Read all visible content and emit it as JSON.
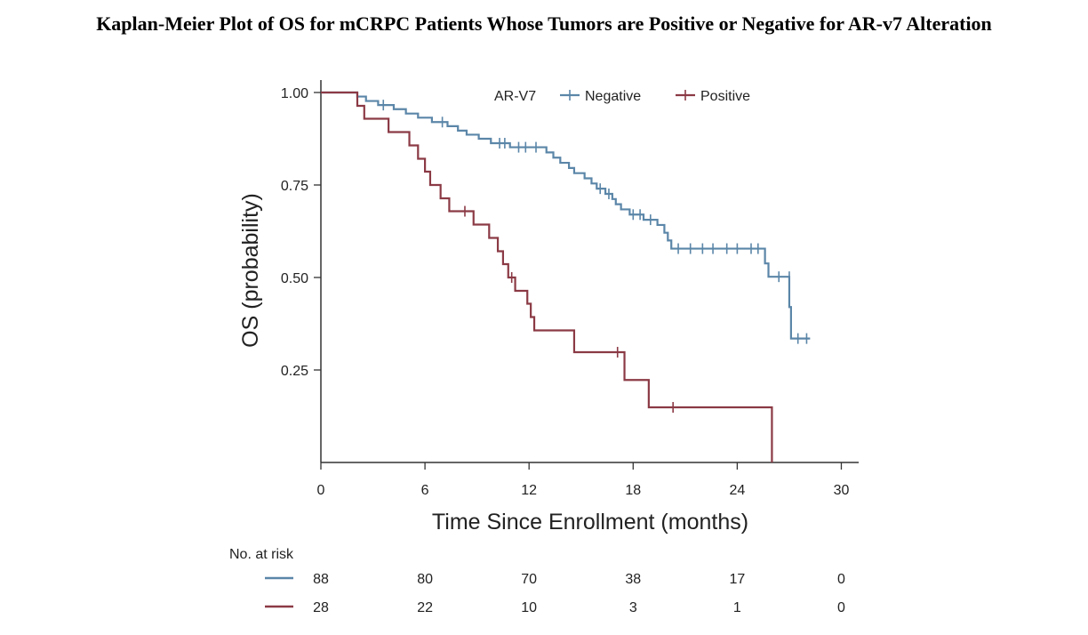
{
  "title": "Kaplan-Meier Plot of OS for mCRPC Patients Whose Tumors are Positive or Negative for AR-v7 Alteration",
  "chart_data": {
    "type": "line",
    "title": "Kaplan-Meier Plot of OS for mCRPC Patients Whose Tumors are Positive or Negative for AR-v7 Alteration",
    "xlabel": "Time Since Enrollment (months)",
    "ylabel": "OS (probability)",
    "xlim": [
      0,
      31
    ],
    "ylim": [
      0,
      1.0
    ],
    "x_ticks": [
      0,
      6,
      12,
      18,
      24,
      30
    ],
    "x_tick_labels": [
      "0",
      "6",
      "12",
      "18",
      "24",
      "30"
    ],
    "y_ticks": [
      0.25,
      0.5,
      0.75,
      1.0
    ],
    "y_tick_labels": [
      "0.25",
      "0.50",
      "0.75",
      "1.00"
    ],
    "legend": {
      "title": "AR-V7",
      "placement": "top-right"
    },
    "series": [
      {
        "name": "Negative",
        "color": "#5b86a8",
        "steps": [
          [
            0,
            1.0
          ],
          [
            2.1,
            0.989
          ],
          [
            2.6,
            0.977
          ],
          [
            3.3,
            0.966
          ],
          [
            4.2,
            0.955
          ],
          [
            4.9,
            0.943
          ],
          [
            5.6,
            0.932
          ],
          [
            6.4,
            0.92
          ],
          [
            7.3,
            0.909
          ],
          [
            7.9,
            0.897
          ],
          [
            8.4,
            0.886
          ],
          [
            9.1,
            0.875
          ],
          [
            9.8,
            0.863
          ],
          [
            10.9,
            0.852
          ],
          [
            13.0,
            0.838
          ],
          [
            13.4,
            0.824
          ],
          [
            13.8,
            0.81
          ],
          [
            14.3,
            0.796
          ],
          [
            14.6,
            0.782
          ],
          [
            15.2,
            0.768
          ],
          [
            15.6,
            0.754
          ],
          [
            15.9,
            0.74
          ],
          [
            16.4,
            0.726
          ],
          [
            16.8,
            0.712
          ],
          [
            17.0,
            0.698
          ],
          [
            17.3,
            0.684
          ],
          [
            17.8,
            0.67
          ],
          [
            18.6,
            0.656
          ],
          [
            19.4,
            0.642
          ],
          [
            19.8,
            0.621
          ],
          [
            20.0,
            0.6
          ],
          [
            20.2,
            0.578
          ],
          [
            25.6,
            0.538
          ],
          [
            25.8,
            0.502
          ],
          [
            27.0,
            0.42
          ],
          [
            27.1,
            0.335
          ],
          [
            28.2,
            0.335
          ]
        ],
        "censors": [
          [
            3.6,
            0.966
          ],
          [
            7.0,
            0.92
          ],
          [
            10.3,
            0.863
          ],
          [
            10.6,
            0.863
          ],
          [
            11.4,
            0.852
          ],
          [
            11.8,
            0.852
          ],
          [
            12.4,
            0.852
          ],
          [
            16.1,
            0.74
          ],
          [
            16.6,
            0.726
          ],
          [
            18.0,
            0.67
          ],
          [
            18.4,
            0.67
          ],
          [
            19.0,
            0.656
          ],
          [
            20.6,
            0.578
          ],
          [
            21.3,
            0.578
          ],
          [
            22.0,
            0.578
          ],
          [
            22.6,
            0.578
          ],
          [
            23.4,
            0.578
          ],
          [
            24.0,
            0.578
          ],
          [
            24.8,
            0.578
          ],
          [
            25.2,
            0.578
          ],
          [
            26.4,
            0.502
          ],
          [
            27.0,
            0.502
          ],
          [
            27.5,
            0.335
          ],
          [
            28.0,
            0.335
          ]
        ]
      },
      {
        "name": "Positive",
        "color": "#8b3a45",
        "steps": [
          [
            0,
            1.0
          ],
          [
            2.1,
            0.964
          ],
          [
            2.5,
            0.929
          ],
          [
            3.9,
            0.893
          ],
          [
            5.1,
            0.857
          ],
          [
            5.6,
            0.821
          ],
          [
            6.0,
            0.786
          ],
          [
            6.3,
            0.75
          ],
          [
            6.9,
            0.714
          ],
          [
            7.4,
            0.679
          ],
          [
            8.8,
            0.643
          ],
          [
            9.7,
            0.607
          ],
          [
            10.2,
            0.571
          ],
          [
            10.5,
            0.536
          ],
          [
            10.8,
            0.5
          ],
          [
            11.2,
            0.464
          ],
          [
            11.9,
            0.429
          ],
          [
            12.1,
            0.393
          ],
          [
            12.3,
            0.357
          ],
          [
            14.6,
            0.298
          ],
          [
            17.5,
            0.223
          ],
          [
            18.9,
            0.149
          ],
          [
            26.0,
            0.0
          ]
        ],
        "censors": [
          [
            8.3,
            0.679
          ],
          [
            11.0,
            0.5
          ],
          [
            17.1,
            0.298
          ],
          [
            20.3,
            0.149
          ]
        ]
      }
    ],
    "risk_table": {
      "label": "No. at risk",
      "times": [
        0,
        6,
        12,
        18,
        24,
        30
      ],
      "rows": [
        {
          "series": "Negative",
          "values": [
            "88",
            "80",
            "70",
            "38",
            "17",
            "0"
          ]
        },
        {
          "series": "Positive",
          "values": [
            "28",
            "22",
            "10",
            "3",
            "1",
            "0"
          ]
        }
      ]
    }
  }
}
